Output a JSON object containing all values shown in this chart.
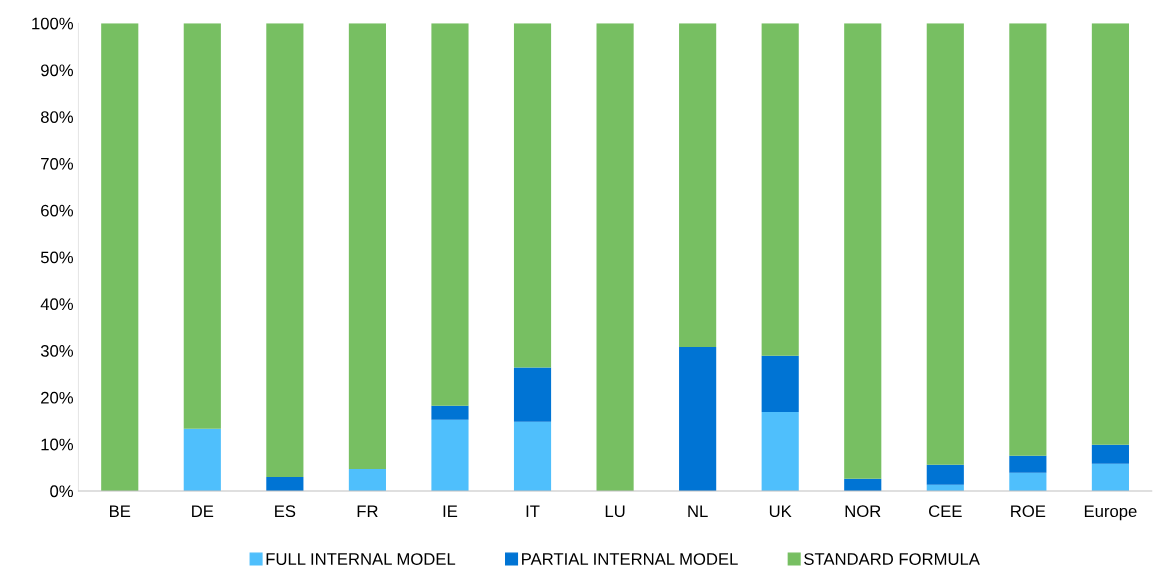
{
  "chart_data": {
    "type": "bar",
    "stacked": true,
    "categories": [
      "BE",
      "DE",
      "ES",
      "FR",
      "IE",
      "IT",
      "LU",
      "NL",
      "UK",
      "NOR",
      "CEE",
      "ROE",
      "Europe"
    ],
    "series": [
      {
        "name": "FULL INTERNAL MODEL",
        "color": "#4fbffc",
        "values": [
          0,
          13.3,
          0,
          4.7,
          15.2,
          14.8,
          0,
          0,
          16.9,
          0,
          1.3,
          3.9,
          5.8
        ]
      },
      {
        "name": "PARTIAL INTERNAL MODEL",
        "color": "#0074d4",
        "values": [
          0,
          0,
          3.0,
          0,
          3.0,
          11.6,
          0,
          30.8,
          12.0,
          2.6,
          4.3,
          3.6,
          4.1
        ]
      },
      {
        "name": "STANDARD FORMULA",
        "color": "#77bf62",
        "values": [
          100,
          86.7,
          97.0,
          95.3,
          81.8,
          73.6,
          100,
          69.2,
          71.1,
          97.4,
          94.4,
          92.5,
          90.1
        ]
      }
    ],
    "ylim": [
      0,
      100
    ],
    "yticks": [
      {
        "value": 0,
        "label": "0%"
      },
      {
        "value": 10,
        "label": "10%"
      },
      {
        "value": 20,
        "label": "20%"
      },
      {
        "value": 30,
        "label": "30%"
      },
      {
        "value": 40,
        "label": "40%"
      },
      {
        "value": 50,
        "label": "50%"
      },
      {
        "value": 60,
        "label": "60%"
      },
      {
        "value": 70,
        "label": "70%"
      },
      {
        "value": 80,
        "label": "80%"
      },
      {
        "value": 90,
        "label": "90%"
      },
      {
        "value": 100,
        "label": "100%"
      }
    ],
    "grid": false,
    "legend": "bottom"
  }
}
